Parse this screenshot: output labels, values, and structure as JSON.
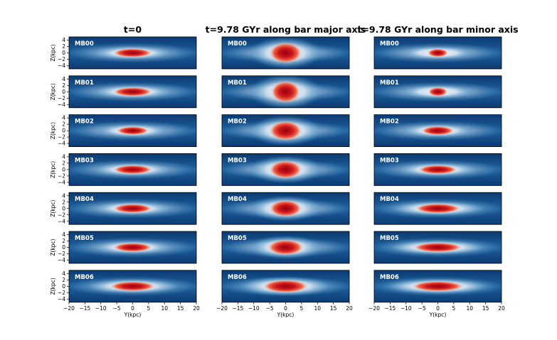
{
  "chart_data": {
    "type": "heatmap",
    "description_units": "kpc",
    "columns": [
      {
        "title": "t=0",
        "xlabel": "Y(kpc)"
      },
      {
        "title": "t=9.78 GYr along bar major axis",
        "xlabel": "Y(kpc)"
      },
      {
        "title": "t=9.78 GYr along bar minor axis",
        "xlabel": "Y(kpc)"
      }
    ],
    "rows": [
      "MB00",
      "MB01",
      "MB02",
      "MB03",
      "MB04",
      "MB05",
      "MB06"
    ],
    "ylabel": "Z(kpc)",
    "xlim": [
      -20,
      20
    ],
    "ylim": [
      -5,
      5
    ],
    "xticks": [
      -20,
      -15,
      -10,
      -5,
      0,
      5,
      10,
      15,
      20
    ],
    "yticks": [
      4,
      2,
      0,
      -2,
      -4
    ],
    "colormap": [
      "#08306b",
      "#2171b5",
      "#9ecae1",
      "#f7fbff",
      "#fcae91",
      "#de2d26",
      "#a50f15"
    ],
    "core_extent_kpc": [
      [
        [
          6,
          1.4
        ],
        [
          5.0,
          3.2
        ],
        [
          3.2,
          1.3
        ]
      ],
      [
        [
          6,
          1.4
        ],
        [
          4.5,
          3.4
        ],
        [
          3.0,
          1.4
        ]
      ],
      [
        [
          5,
          1.3
        ],
        [
          5.0,
          3.0
        ],
        [
          5.0,
          1.4
        ]
      ],
      [
        [
          6,
          1.4
        ],
        [
          5.0,
          2.8
        ],
        [
          6.0,
          1.4
        ]
      ],
      [
        [
          6,
          1.4
        ],
        [
          5.0,
          2.6
        ],
        [
          7.0,
          1.5
        ]
      ],
      [
        [
          6,
          1.4
        ],
        [
          5.5,
          2.4
        ],
        [
          7.5,
          1.5
        ]
      ],
      [
        [
          7,
          1.5
        ],
        [
          7.0,
          2.0
        ],
        [
          8.0,
          1.6
        ]
      ]
    ]
  }
}
